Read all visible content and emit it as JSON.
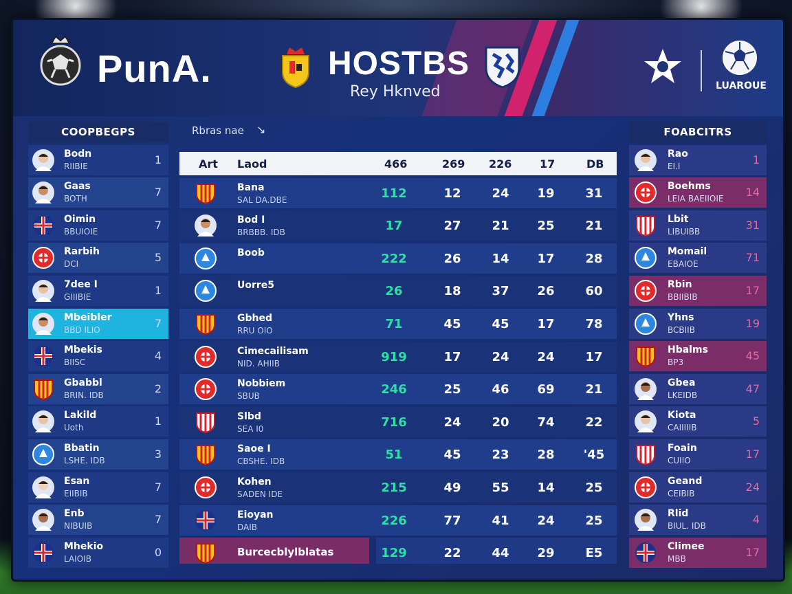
{
  "header": {
    "brand": "PunA.",
    "title": "HOSTBS",
    "subtitle": "Rey Hknved",
    "league_text": "LUAROUE"
  },
  "left_panel": {
    "title": "COOPBEGPS",
    "rows": [
      {
        "name": "Bodn",
        "sub": "RIIBIE",
        "num": "1"
      },
      {
        "name": "Gaas",
        "sub": "BOTH",
        "num": "7"
      },
      {
        "name": "Oimin",
        "sub": "BBUIOIE",
        "num": "7"
      },
      {
        "name": "Rarbih",
        "sub": "DCI",
        "num": "5"
      },
      {
        "name": "7dee I",
        "sub": "GIIIBIE",
        "num": "1"
      },
      {
        "name": "Mbeibler",
        "sub": "BBD ILIO",
        "num": "7"
      },
      {
        "name": "Mbekis",
        "sub": "BIISC",
        "num": "4"
      },
      {
        "name": "Gbabbl",
        "sub": "BRIN. IDB",
        "num": "2"
      },
      {
        "name": "Lakild",
        "sub": "Uoth",
        "num": "1"
      },
      {
        "name": "Bbatin",
        "sub": "LSHE. IDB",
        "num": "3"
      },
      {
        "name": "Esan",
        "sub": "EIIBIB",
        "num": "7"
      },
      {
        "name": "Enb",
        "sub": "NIBUIB",
        "num": "7"
      },
      {
        "name": "Mhekio",
        "sub": "LAIOIB",
        "num": "0"
      }
    ]
  },
  "table": {
    "label": "Rbras nae",
    "headers": [
      "Art",
      "Laod",
      "466",
      "269",
      "226",
      "17",
      "DB"
    ],
    "rows": [
      {
        "name": "Bana",
        "sub": "SAL DA.DBE",
        "v1": "112",
        "v2": "12",
        "v3": "24",
        "v4": "19",
        "v5": "31"
      },
      {
        "name": "Bod I",
        "sub": "BRBBB. IDB",
        "v1": "17",
        "v2": "27",
        "v3": "21",
        "v4": "25",
        "v5": "21"
      },
      {
        "name": "Boob",
        "sub": "",
        "v1": "222",
        "v2": "26",
        "v3": "14",
        "v4": "17",
        "v5": "28"
      },
      {
        "name": "Uorre5",
        "sub": "",
        "v1": "26",
        "v2": "18",
        "v3": "37",
        "v4": "26",
        "v5": "60"
      },
      {
        "name": "Gbhed",
        "sub": "RRU OIO",
        "v1": "71",
        "v2": "45",
        "v3": "45",
        "v4": "17",
        "v5": "78"
      },
      {
        "name": "Cimecailisam",
        "sub": "NID. AHIIB",
        "v1": "919",
        "v2": "17",
        "v3": "24",
        "v4": "24",
        "v5": "17"
      },
      {
        "name": "Nobbiem",
        "sub": "SBUB",
        "v1": "246",
        "v2": "25",
        "v3": "46",
        "v4": "69",
        "v5": "21"
      },
      {
        "name": "Slbd",
        "sub": "SEA I0",
        "v1": "716",
        "v2": "24",
        "v3": "20",
        "v4": "74",
        "v5": "22"
      },
      {
        "name": "Saoe I",
        "sub": "CBSHE. IDB",
        "v1": "51",
        "v2": "45",
        "v3": "23",
        "v4": "28",
        "v5": "'45"
      },
      {
        "name": "Kohen",
        "sub": "SADEN IDE",
        "v1": "215",
        "v2": "49",
        "v3": "55",
        "v4": "14",
        "v5": "25"
      },
      {
        "name": "Eioyan",
        "sub": "DAIB",
        "v1": "226",
        "v2": "77",
        "v3": "41",
        "v4": "24",
        "v5": "25"
      },
      {
        "name": "Burcecblylblatas",
        "sub": "",
        "v1": "129",
        "v2": "22",
        "v3": "44",
        "v4": "29",
        "v5": "E5"
      }
    ]
  },
  "right_panel": {
    "title": "FOABCITRS",
    "rows": [
      {
        "name": "Rao",
        "sub": "EI.I",
        "num": "1"
      },
      {
        "name": "Boehms",
        "sub": "LEIA BAEIIOIE",
        "num": "14"
      },
      {
        "name": "Lbit",
        "sub": "LIBUIBB",
        "num": "31"
      },
      {
        "name": "Momail",
        "sub": "EBAIOE",
        "num": "71"
      },
      {
        "name": "Rbin",
        "sub": "BBIIBIB",
        "num": "17"
      },
      {
        "name": "Yhns",
        "sub": "BCBIIB",
        "num": "19"
      },
      {
        "name": "Hbalms",
        "sub": "BP3",
        "num": "45"
      },
      {
        "name": "Gbea",
        "sub": "LKEIDB",
        "num": "47"
      },
      {
        "name": "Kiota",
        "sub": "CAIIIIIB",
        "num": "5"
      },
      {
        "name": "Foain",
        "sub": "CUIIO",
        "num": "17"
      },
      {
        "name": "Geand",
        "sub": "CEIBIB",
        "num": "24"
      },
      {
        "name": "Rlid",
        "sub": "BIUL. IDB",
        "num": "4"
      },
      {
        "name": "Climee",
        "sub": "MBB",
        "num": "17"
      }
    ]
  },
  "colors": {
    "accent_teal": "#2fe0a4",
    "selected_row": "#1fb4e0",
    "pink_row": "#7b2d6a",
    "stripe_pink": "#d2226e"
  }
}
